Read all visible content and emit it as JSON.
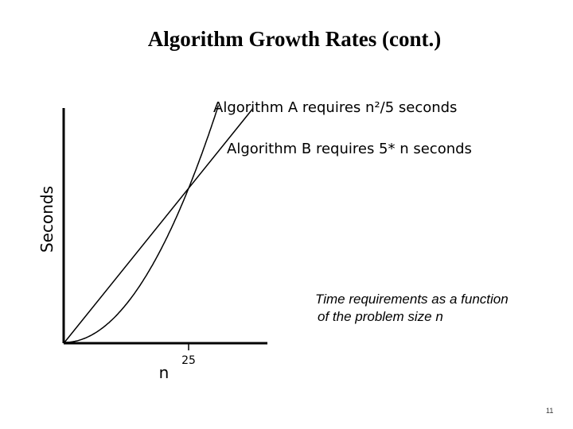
{
  "slide": {
    "title": "Algorithm Growth Rates (cont.)",
    "caption_line1": "Time requirements as a function",
    "caption_line2": "of the problem size n",
    "page_number": "11"
  },
  "chart_data": {
    "type": "line",
    "title": "",
    "xlabel": "n",
    "ylabel": "Seconds",
    "x_ticks": [
      25
    ],
    "x_tick_labels": [
      "25"
    ],
    "xlim": [
      0,
      50
    ],
    "grid": false,
    "series": [
      {
        "name": "Algorithm A requires n²/5 seconds",
        "formula": "n^2/5",
        "color": "#000000"
      },
      {
        "name": "Algorithm B requires 5* n seconds",
        "formula": "5*n",
        "color": "#000000"
      }
    ],
    "intersection": {
      "x": 25,
      "y": 125
    }
  }
}
